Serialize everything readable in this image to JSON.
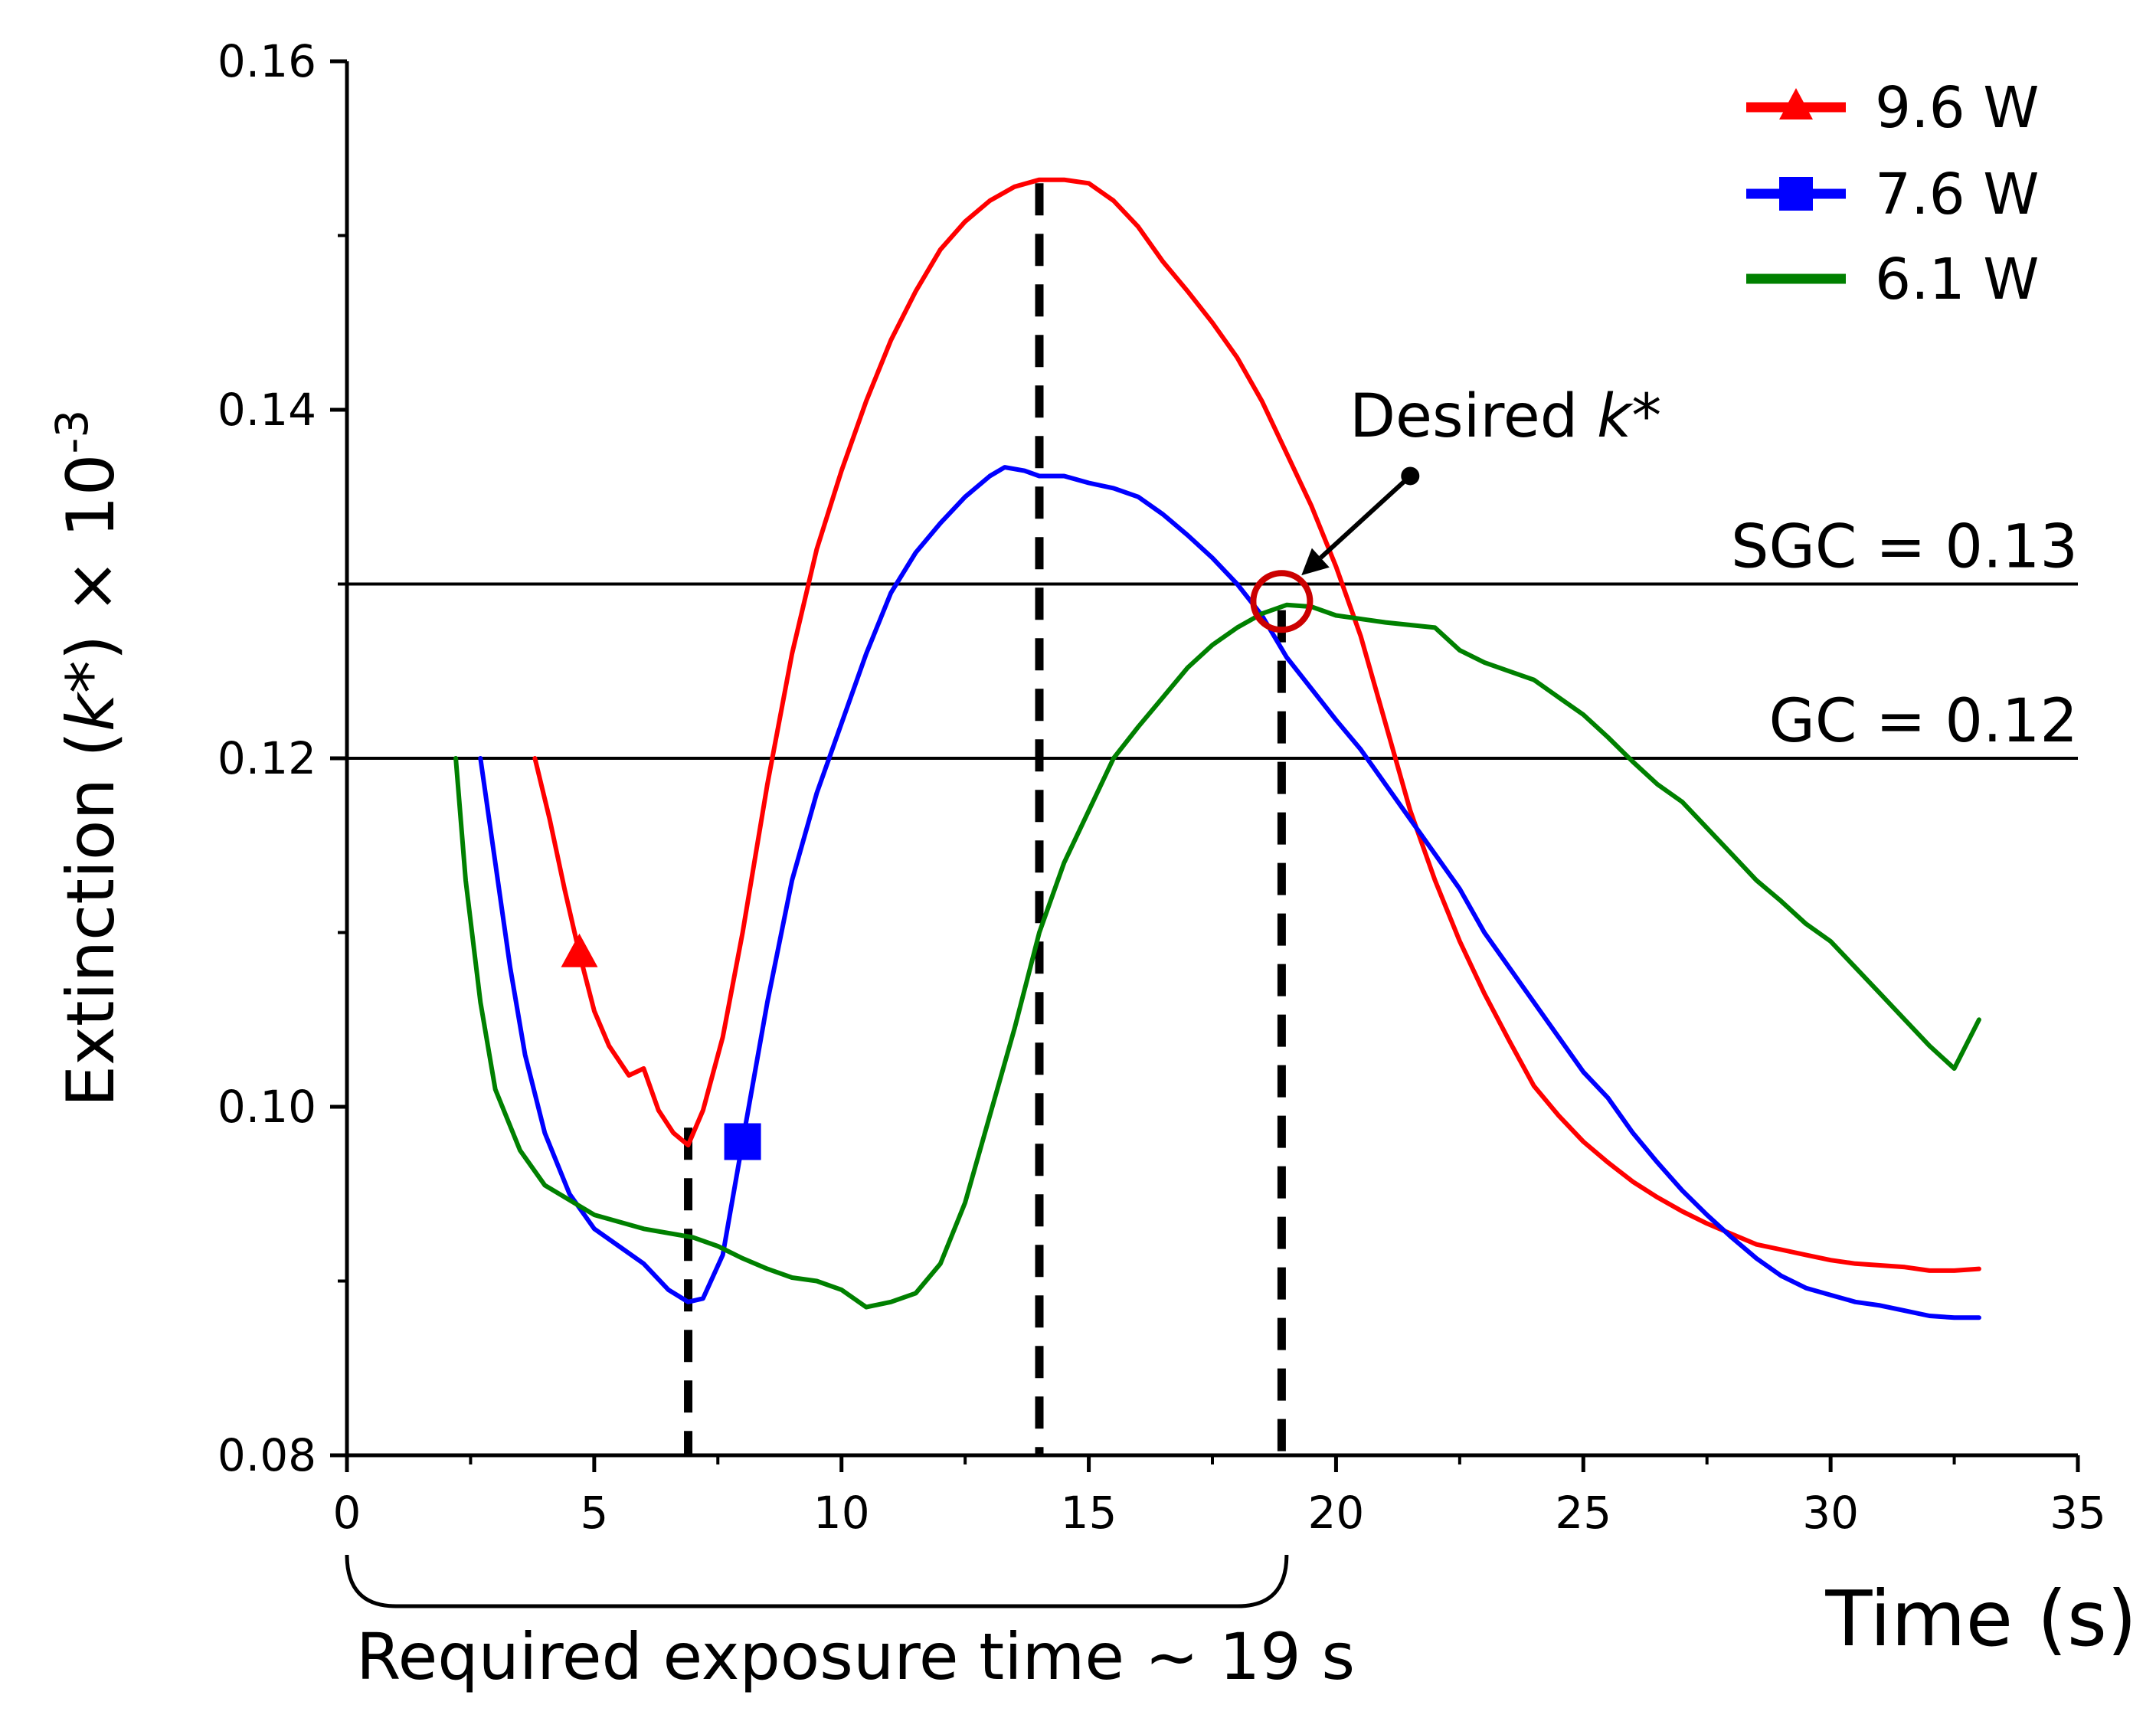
{
  "chart_data": {
    "type": "line",
    "xlabel": "Time (s)",
    "ylabel": {
      "prefix": "Extinction (",
      "var": "k",
      "suffix": "*) × 10",
      "exponent": "-3"
    },
    "xlim": [
      0,
      35
    ],
    "ylim": [
      0.08,
      0.16
    ],
    "x_ticks": [
      0,
      5,
      10,
      15,
      20,
      25,
      30,
      35
    ],
    "x_tick_labels": [
      "0",
      "5",
      "10",
      "15",
      "20",
      "25",
      "30",
      "35"
    ],
    "y_ticks": [
      0.08,
      0.1,
      0.12,
      0.14,
      0.16
    ],
    "y_tick_labels": [
      "0.08",
      "0.10",
      "0.12",
      "0.14",
      "0.16"
    ],
    "grid": false,
    "legend_position": "top-right",
    "series": [
      {
        "name": "9.6 W",
        "color": "#ff0000",
        "marker": "triangle",
        "marker_point": [
          4.7,
          0.1088
        ],
        "points": [
          [
            3.8,
            0.12
          ],
          [
            4.1,
            0.1165
          ],
          [
            4.4,
            0.1125
          ],
          [
            4.7,
            0.1088
          ],
          [
            5.0,
            0.1055
          ],
          [
            5.3,
            0.1035
          ],
          [
            5.7,
            0.1018
          ],
          [
            6.0,
            0.1022
          ],
          [
            6.3,
            0.0998
          ],
          [
            6.6,
            0.0985
          ],
          [
            6.9,
            0.0978
          ],
          [
            7.2,
            0.0998
          ],
          [
            7.6,
            0.104
          ],
          [
            8.0,
            0.11
          ],
          [
            8.5,
            0.1185
          ],
          [
            9.0,
            0.126
          ],
          [
            9.5,
            0.132
          ],
          [
            10.0,
            0.1365
          ],
          [
            10.5,
            0.1405
          ],
          [
            11.0,
            0.144
          ],
          [
            11.5,
            0.1468
          ],
          [
            12.0,
            0.1492
          ],
          [
            12.5,
            0.1508
          ],
          [
            13.0,
            0.152
          ],
          [
            13.5,
            0.1528
          ],
          [
            14.0,
            0.1532
          ],
          [
            14.5,
            0.1532
          ],
          [
            15.0,
            0.153
          ],
          [
            15.5,
            0.152
          ],
          [
            16.0,
            0.1505
          ],
          [
            16.5,
            0.1485
          ],
          [
            17.0,
            0.1468
          ],
          [
            17.5,
            0.145
          ],
          [
            18.0,
            0.143
          ],
          [
            18.5,
            0.1405
          ],
          [
            19.0,
            0.1375
          ],
          [
            19.5,
            0.1345
          ],
          [
            20.0,
            0.131
          ],
          [
            20.5,
            0.127
          ],
          [
            21.0,
            0.122
          ],
          [
            21.5,
            0.117
          ],
          [
            22.0,
            0.113
          ],
          [
            22.5,
            0.1095
          ],
          [
            23.0,
            0.1065
          ],
          [
            23.5,
            0.1038
          ],
          [
            24.0,
            0.1012
          ],
          [
            24.5,
            0.0995
          ],
          [
            25.0,
            0.098
          ],
          [
            25.5,
            0.0968
          ],
          [
            26.0,
            0.0957
          ],
          [
            26.5,
            0.0948
          ],
          [
            27.0,
            0.094
          ],
          [
            27.5,
            0.0933
          ],
          [
            28.0,
            0.0927
          ],
          [
            28.5,
            0.0921
          ],
          [
            29.0,
            0.0918
          ],
          [
            29.5,
            0.0915
          ],
          [
            30.0,
            0.0912
          ],
          [
            30.5,
            0.091
          ],
          [
            31.0,
            0.0909
          ],
          [
            31.5,
            0.0908
          ],
          [
            32.0,
            0.0906
          ],
          [
            32.5,
            0.0906
          ],
          [
            33.0,
            0.0907
          ]
        ]
      },
      {
        "name": "7.6 W",
        "color": "#0000ff",
        "marker": "square",
        "marker_point": [
          8.0,
          0.098
        ],
        "points": [
          [
            2.7,
            0.12
          ],
          [
            3.0,
            0.114
          ],
          [
            3.3,
            0.108
          ],
          [
            3.6,
            0.103
          ],
          [
            4.0,
            0.0985
          ],
          [
            4.5,
            0.095
          ],
          [
            5.0,
            0.093
          ],
          [
            5.5,
            0.092
          ],
          [
            6.0,
            0.091
          ],
          [
            6.5,
            0.0895
          ],
          [
            6.9,
            0.0888
          ],
          [
            7.2,
            0.089
          ],
          [
            7.6,
            0.0915
          ],
          [
            8.0,
            0.098
          ],
          [
            8.5,
            0.106
          ],
          [
            9.0,
            0.113
          ],
          [
            9.5,
            0.118
          ],
          [
            10.0,
            0.122
          ],
          [
            10.5,
            0.126
          ],
          [
            11.0,
            0.1295
          ],
          [
            11.5,
            0.1318
          ],
          [
            12.0,
            0.1335
          ],
          [
            12.5,
            0.135
          ],
          [
            13.0,
            0.1362
          ],
          [
            13.3,
            0.1367
          ],
          [
            13.7,
            0.1365
          ],
          [
            14.0,
            0.1362
          ],
          [
            14.5,
            0.1362
          ],
          [
            15.0,
            0.1358
          ],
          [
            15.5,
            0.1355
          ],
          [
            16.0,
            0.135
          ],
          [
            16.5,
            0.134
          ],
          [
            17.0,
            0.1328
          ],
          [
            17.5,
            0.1315
          ],
          [
            18.0,
            0.13
          ],
          [
            18.5,
            0.1282
          ],
          [
            19.0,
            0.1258
          ],
          [
            19.5,
            0.124
          ],
          [
            20.0,
            0.1222
          ],
          [
            20.5,
            0.1205
          ],
          [
            21.0,
            0.1185
          ],
          [
            21.5,
            0.1165
          ],
          [
            22.0,
            0.1145
          ],
          [
            22.5,
            0.1125
          ],
          [
            23.0,
            0.11
          ],
          [
            23.5,
            0.108
          ],
          [
            24.0,
            0.106
          ],
          [
            24.5,
            0.104
          ],
          [
            25.0,
            0.102
          ],
          [
            25.5,
            0.1005
          ],
          [
            26.0,
            0.0985
          ],
          [
            26.5,
            0.0968
          ],
          [
            27.0,
            0.0952
          ],
          [
            27.5,
            0.0938
          ],
          [
            28.0,
            0.0925
          ],
          [
            28.5,
            0.0913
          ],
          [
            29.0,
            0.0903
          ],
          [
            29.5,
            0.0896
          ],
          [
            30.0,
            0.0892
          ],
          [
            30.5,
            0.0888
          ],
          [
            31.0,
            0.0886
          ],
          [
            31.5,
            0.0883
          ],
          [
            32.0,
            0.088
          ],
          [
            32.5,
            0.0879
          ],
          [
            33.0,
            0.0879
          ]
        ]
      },
      {
        "name": "6.1 W",
        "color": "#008000",
        "marker": "none",
        "points": [
          [
            2.2,
            0.12
          ],
          [
            2.4,
            0.113
          ],
          [
            2.7,
            0.106
          ],
          [
            3.0,
            0.101
          ],
          [
            3.5,
            0.0975
          ],
          [
            4.0,
            0.0955
          ],
          [
            5.0,
            0.0938
          ],
          [
            6.0,
            0.093
          ],
          [
            7.0,
            0.0925
          ],
          [
            7.5,
            0.092
          ],
          [
            8.0,
            0.0913
          ],
          [
            8.5,
            0.0907
          ],
          [
            9.0,
            0.0902
          ],
          [
            9.5,
            0.09
          ],
          [
            10.0,
            0.0895
          ],
          [
            10.5,
            0.0885
          ],
          [
            11.0,
            0.0888
          ],
          [
            11.5,
            0.0893
          ],
          [
            12.0,
            0.091
          ],
          [
            12.5,
            0.0945
          ],
          [
            13.0,
            0.0995
          ],
          [
            13.5,
            0.1045
          ],
          [
            14.0,
            0.11
          ],
          [
            14.5,
            0.114
          ],
          [
            15.0,
            0.117
          ],
          [
            15.5,
            0.12
          ],
          [
            16.0,
            0.1218
          ],
          [
            16.5,
            0.1235
          ],
          [
            17.0,
            0.1252
          ],
          [
            17.5,
            0.1265
          ],
          [
            18.0,
            0.1275
          ],
          [
            18.5,
            0.1283
          ],
          [
            19.0,
            0.1288
          ],
          [
            19.5,
            0.1287
          ],
          [
            20.0,
            0.1282
          ],
          [
            21.0,
            0.1278
          ],
          [
            22.0,
            0.1275
          ],
          [
            22.5,
            0.1262
          ],
          [
            23.0,
            0.1255
          ],
          [
            23.5,
            0.125
          ],
          [
            24.0,
            0.1245
          ],
          [
            24.5,
            0.1235
          ],
          [
            25.0,
            0.1225
          ],
          [
            25.5,
            0.1212
          ],
          [
            26.0,
            0.1198
          ],
          [
            26.5,
            0.1185
          ],
          [
            27.0,
            0.1175
          ],
          [
            27.5,
            0.116
          ],
          [
            28.0,
            0.1145
          ],
          [
            28.5,
            0.113
          ],
          [
            29.0,
            0.1118
          ],
          [
            29.5,
            0.1105
          ],
          [
            30.0,
            0.1095
          ],
          [
            30.5,
            0.108
          ],
          [
            31.0,
            0.1065
          ],
          [
            31.5,
            0.105
          ],
          [
            32.0,
            0.1035
          ],
          [
            32.5,
            0.1022
          ],
          [
            33.0,
            0.105
          ]
        ]
      }
    ],
    "reference_lines": [
      {
        "name": "SGC",
        "label": "SGC = 0.13",
        "y": 0.13
      },
      {
        "name": "GC",
        "label": "GC = 0.12",
        "y": 0.12
      }
    ],
    "vertical_markers": [
      {
        "x": 6.9,
        "y_top": 0.0988
      },
      {
        "x": 14.0,
        "y_top": 0.153
      },
      {
        "x": 18.9,
        "y_top": 0.1285
      }
    ],
    "annotations": {
      "desired_k": {
        "prefix": "Desired ",
        "var": "k",
        "suffix": "*",
        "circle_at": [
          18.9,
          0.129
        ],
        "arrow_from": [
          21.5,
          0.1362
        ],
        "arrow_to": [
          19.3,
          0.1305
        ]
      },
      "exposure": {
        "label": "Required exposure time ~ 19 s",
        "x_start": 0,
        "x_end": 19
      }
    },
    "colors": {
      "reference_line": "#000000",
      "marker_line": "#000000",
      "circle": "#cc0000"
    }
  }
}
